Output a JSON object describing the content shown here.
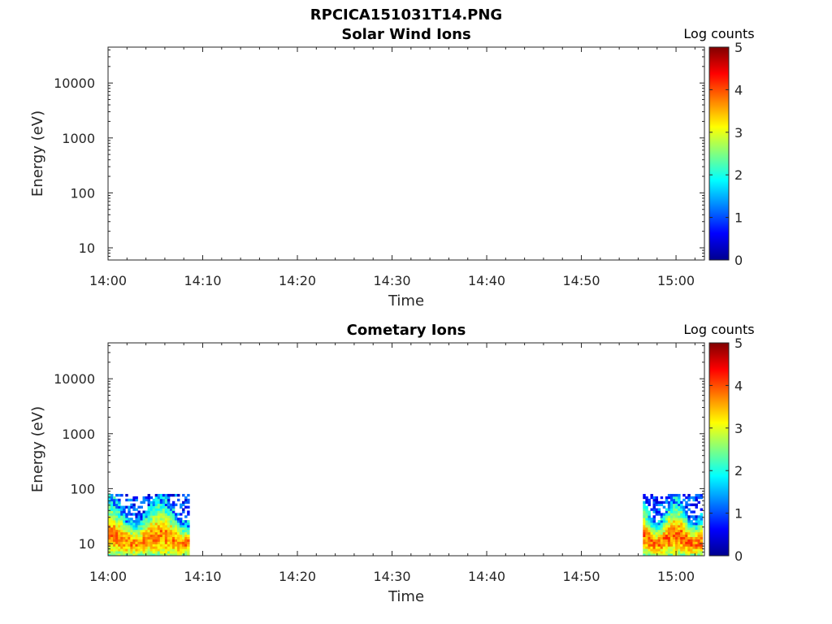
{
  "figure_title": "RPCICA151031T14.PNG",
  "colors": {
    "axis": "#262626",
    "colormap": "jet",
    "colormap_stops": [
      "#00008f",
      "#0000ff",
      "#0080ff",
      "#00ffff",
      "#80ff80",
      "#ffff00",
      "#ff8000",
      "#ff0000",
      "#800000"
    ]
  },
  "chart_data": [
    {
      "type": "heatmap",
      "title": "Solar Wind Ions",
      "xlabel": "Time",
      "ylabel": "Energy (eV)",
      "yscale": "log",
      "ylim": [
        6,
        45000
      ],
      "xlim": [
        "14:00",
        "15:03"
      ],
      "xticks": [
        "14:00",
        "14:10",
        "14:20",
        "14:30",
        "14:40",
        "14:50",
        "15:00"
      ],
      "yticks": [
        "10",
        "100",
        "1000",
        "10000"
      ],
      "colorbar": {
        "label": "Log counts",
        "range": [
          0,
          5
        ],
        "ticks": [
          "0",
          "1",
          "2",
          "3",
          "4",
          "5"
        ]
      },
      "data_blocks": []
    },
    {
      "type": "heatmap",
      "title": "Cometary Ions",
      "xlabel": "Time",
      "ylabel": "Energy (eV)",
      "yscale": "log",
      "ylim": [
        6,
        45000
      ],
      "xlim": [
        "14:00",
        "15:03"
      ],
      "xticks": [
        "14:00",
        "14:10",
        "14:20",
        "14:30",
        "14:40",
        "14:50",
        "15:00"
      ],
      "yticks": [
        "10",
        "100",
        "1000",
        "10000"
      ],
      "colorbar": {
        "label": "Log counts",
        "range": [
          0,
          5
        ],
        "ticks": [
          "0",
          "1",
          "2",
          "3",
          "4",
          "5"
        ]
      },
      "data_blocks": [
        {
          "start": "14:00",
          "end": "14:08.6",
          "energy_range_eV": [
            6,
            80
          ],
          "peak_log_counts": 4.0
        },
        {
          "start": "14:56.5",
          "end": "15:02.8",
          "energy_range_eV": [
            6,
            80
          ],
          "peak_log_counts": 4.2
        }
      ]
    }
  ]
}
